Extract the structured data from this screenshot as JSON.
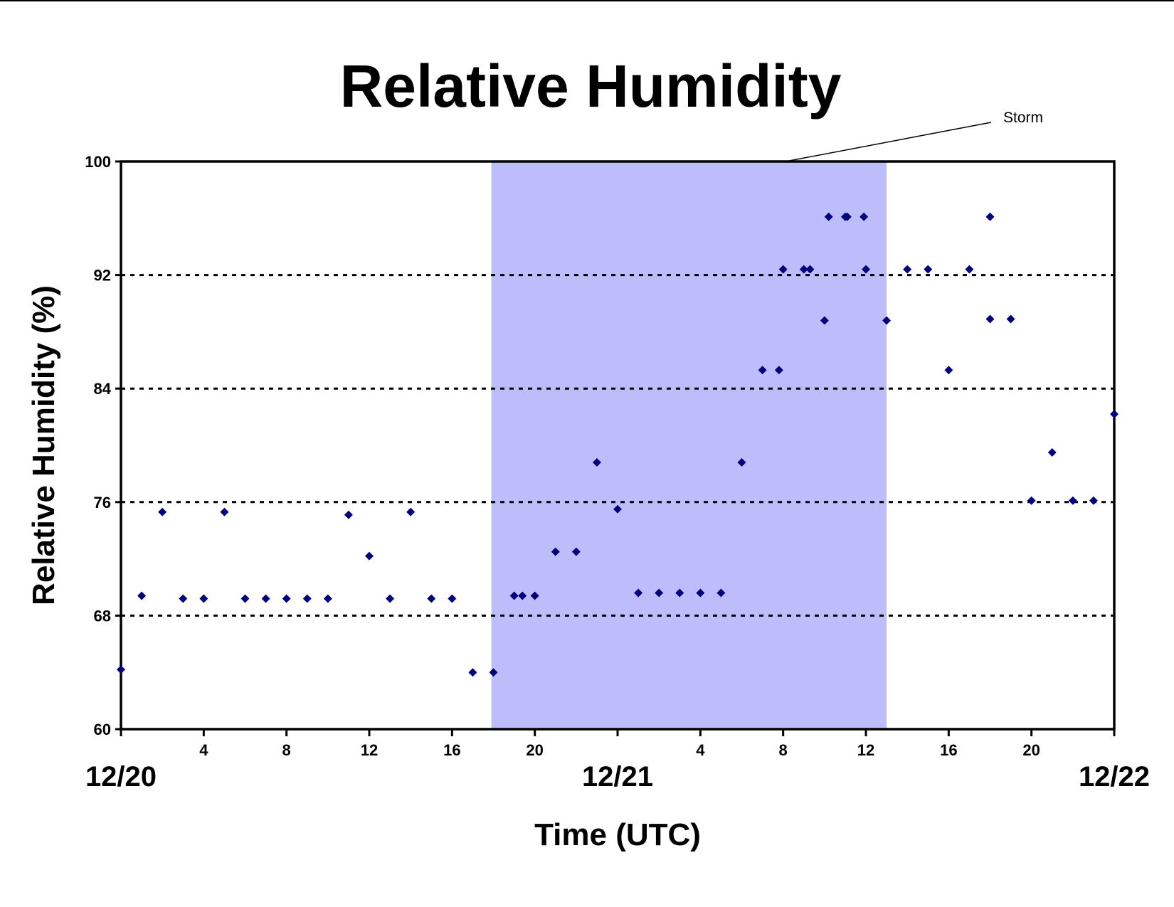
{
  "chart_data": {
    "type": "scatter",
    "title": "Relative Humidity",
    "xlabel": "Time (UTC)",
    "ylabel": "Relative Humidity (%)",
    "ylim": [
      60,
      100
    ],
    "yticks": [
      "60",
      "68",
      "76",
      "84",
      "92",
      "100"
    ],
    "xlim_hours": [
      0,
      48
    ],
    "xtick_labels": [
      {
        "hour": 4,
        "label": "4"
      },
      {
        "hour": 8,
        "label": "8"
      },
      {
        "hour": 12,
        "label": "12"
      },
      {
        "hour": 16,
        "label": "16"
      },
      {
        "hour": 20,
        "label": "20"
      },
      {
        "hour": 28,
        "label": "4"
      },
      {
        "hour": 32,
        "label": "8"
      },
      {
        "hour": 36,
        "label": "12"
      },
      {
        "hour": 40,
        "label": "16"
      },
      {
        "hour": 44,
        "label": "20"
      }
    ],
    "date_labels": [
      {
        "hour": 0,
        "label": "12/20"
      },
      {
        "hour": 24,
        "label": "12/21"
      },
      {
        "hour": 48,
        "label": "12/22"
      }
    ],
    "grid_y": [
      68,
      76,
      84,
      92
    ],
    "grid_style": "dotted",
    "shaded_region": {
      "start_hour": 17.9,
      "end_hour": 37.0,
      "label": "Storm",
      "color": "#bdbdfb"
    },
    "marker_color": "#00007f",
    "series": [
      {
        "points": [
          [
            0,
            64.2
          ],
          [
            1,
            69.4
          ],
          [
            2,
            75.3
          ],
          [
            3,
            69.2
          ],
          [
            4,
            69.2
          ],
          [
            5,
            75.3
          ],
          [
            6,
            69.2
          ],
          [
            7,
            69.2
          ],
          [
            8,
            69.2
          ],
          [
            9,
            69.2
          ],
          [
            10,
            69.2
          ],
          [
            11,
            75.1
          ],
          [
            12,
            72.2
          ],
          [
            13,
            69.2
          ],
          [
            14,
            75.3
          ],
          [
            15,
            69.2
          ],
          [
            16,
            69.2
          ],
          [
            17,
            64.0
          ],
          [
            18,
            64.0
          ],
          [
            19,
            69.4
          ],
          [
            19.4,
            69.4
          ],
          [
            20,
            69.4
          ],
          [
            21,
            72.5
          ],
          [
            22,
            72.5
          ],
          [
            23,
            78.8
          ],
          [
            24,
            75.5
          ],
          [
            25,
            69.6
          ],
          [
            26,
            69.6
          ],
          [
            27,
            69.6
          ],
          [
            28,
            69.6
          ],
          [
            29,
            69.6
          ],
          [
            30,
            78.8
          ],
          [
            31,
            85.3
          ],
          [
            31.8,
            85.3
          ],
          [
            32,
            92.4
          ],
          [
            33,
            92.4
          ],
          [
            33.3,
            92.4
          ],
          [
            34,
            88.8
          ],
          [
            34.2,
            96.1
          ],
          [
            35,
            96.1
          ],
          [
            35.1,
            96.1
          ],
          [
            35.9,
            96.1
          ],
          [
            36,
            92.4
          ],
          [
            37,
            88.8
          ],
          [
            38,
            92.4
          ],
          [
            39,
            92.4
          ],
          [
            40,
            85.3
          ],
          [
            41,
            92.4
          ],
          [
            42,
            88.9
          ],
          [
            42,
            96.1
          ],
          [
            43,
            88.9
          ],
          [
            44,
            76.1
          ],
          [
            45,
            79.5
          ],
          [
            46,
            76.1
          ],
          [
            47,
            76.1
          ],
          [
            48,
            82.2
          ]
        ]
      }
    ]
  }
}
